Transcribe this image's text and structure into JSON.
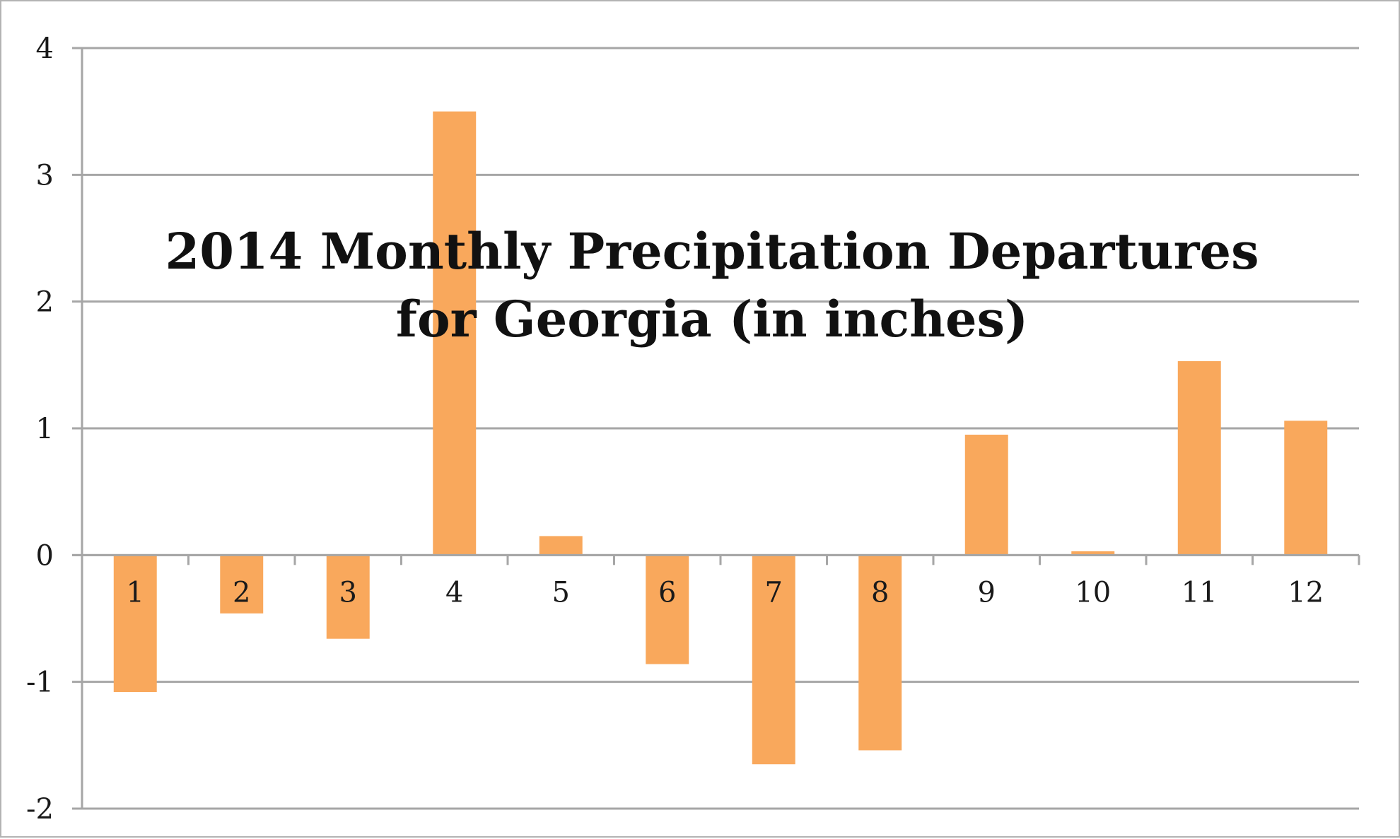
{
  "chart_data": {
    "type": "bar",
    "title_lines": [
      "2014 Monthly Precipitation Departures",
      "for Georgia (in inches)"
    ],
    "categories": [
      "1",
      "2",
      "3",
      "4",
      "5",
      "6",
      "7",
      "8",
      "9",
      "10",
      "11",
      "12"
    ],
    "values": [
      -1.08,
      -0.46,
      -0.66,
      3.5,
      0.15,
      -0.86,
      -1.65,
      -1.54,
      0.95,
      0.03,
      1.53,
      1.06
    ],
    "xlabel": "",
    "ylabel": "",
    "ylim": [
      -2,
      4
    ],
    "yticks": [
      "4",
      "3",
      "2",
      "1",
      "0",
      "-1",
      "-2"
    ],
    "grid": true,
    "legend": "none",
    "bar_color": "#f9a85c",
    "grid_color": "#a6a6a6",
    "axis_color": "#a6a6a6"
  }
}
